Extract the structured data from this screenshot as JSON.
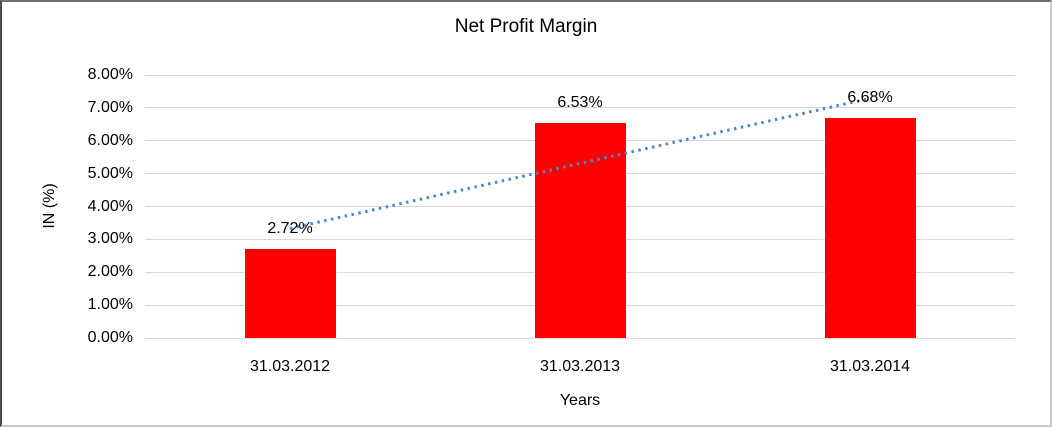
{
  "chart_data": {
    "type": "bar",
    "title": "Net Profit Margin",
    "xlabel": "Years",
    "ylabel": "IN (%)",
    "categories": [
      "31.03.2012",
      "31.03.2013",
      "31.03.2014"
    ],
    "series": [
      {
        "name": "Net Profit Margin",
        "values": [
          2.72,
          6.53,
          6.68
        ]
      }
    ],
    "data_labels": [
      "2.72%",
      "6.53%",
      "6.68%"
    ],
    "ylim": [
      0,
      8
    ],
    "ytick_labels": [
      "0.00%",
      "1.00%",
      "2.00%",
      "3.00%",
      "4.00%",
      "5.00%",
      "6.00%",
      "7.00%",
      "8.00%"
    ],
    "grid": true,
    "legend": false,
    "bar_color": "#FF0000",
    "gridline_color": "#D9D9D9",
    "trendline": {
      "type": "linear",
      "style": "dotted",
      "color": "#4E87C8"
    }
  }
}
